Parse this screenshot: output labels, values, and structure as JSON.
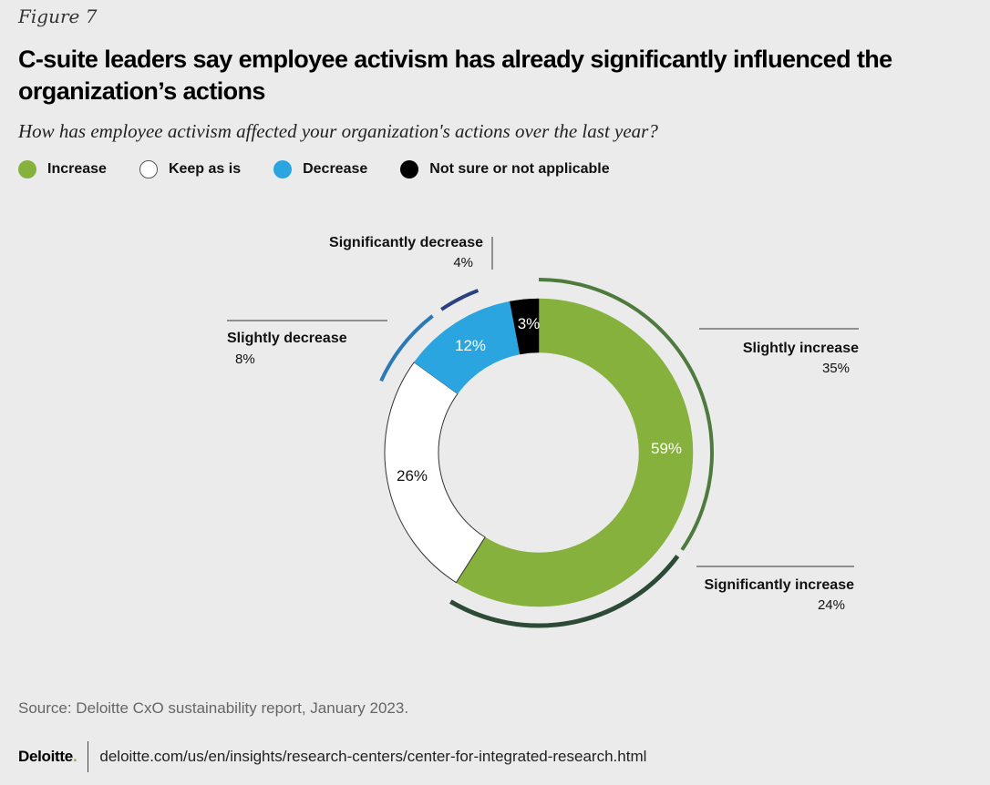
{
  "figure_label": "Figure 7",
  "title": "C-suite leaders say employee activism has already significantly influenced the organization’s actions",
  "subtitle": "How has employee activism affected your organization's actions over the last year?",
  "legend": [
    {
      "label": "Increase",
      "color": "#86b13d"
    },
    {
      "label": "Keep as is",
      "color": "#ffffff"
    },
    {
      "label": "Decrease",
      "color": "#2aa5e0"
    },
    {
      "label": "Not sure or not applicable",
      "color": "#000000"
    }
  ],
  "chart_data": {
    "type": "pie",
    "variant": "donut",
    "title": "",
    "slices": [
      {
        "name": "Increase",
        "value": 59,
        "label": "59%",
        "color": "#86b13d"
      },
      {
        "name": "Keep as is",
        "value": 26,
        "label": "26%",
        "color": "#ffffff"
      },
      {
        "name": "Decrease",
        "value": 12,
        "label": "12%",
        "color": "#2aa5e0"
      },
      {
        "name": "Not sure or not applicable",
        "value": 3,
        "label": "3%",
        "color": "#000000"
      }
    ],
    "sub_breakdown": [
      {
        "name": "Slightly increase",
        "value": 35,
        "label": "35%",
        "color": "#4e7a3e",
        "parent": "Increase"
      },
      {
        "name": "Significantly increase",
        "value": 24,
        "label": "24%",
        "color": "#2c4a35",
        "parent": "Increase"
      },
      {
        "name": "Slightly decrease",
        "value": 8,
        "label": "8%",
        "color": "#2a7ab8",
        "parent": "Decrease"
      },
      {
        "name": "Significantly decrease",
        "value": 4,
        "label": "4%",
        "color": "#2c3f82",
        "parent": "Decrease"
      }
    ]
  },
  "source": "Source: Deloitte CxO sustainability report, January 2023.",
  "footer": {
    "brand": "Deloitte",
    "brand_dot": ".",
    "url": "deloitte.com/us/en/insights/research-centers/center-for-integrated-research.html"
  }
}
